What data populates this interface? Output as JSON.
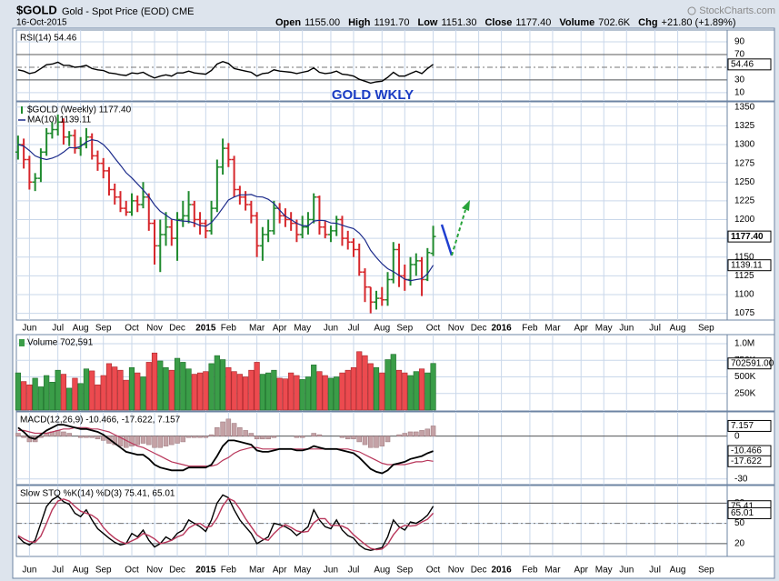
{
  "header": {
    "symbol": "$GOLD",
    "name": "Gold - Spot Price (EOD) CME",
    "date": "16-Oct-2015",
    "quote": [
      [
        "Open",
        "1155.00"
      ],
      [
        "High",
        "1191.70"
      ],
      [
        "Low",
        "1151.30"
      ],
      [
        "Close",
        "1177.40"
      ],
      [
        "Volume",
        "702.6K"
      ],
      [
        "Chg",
        "+21.80 (+1.89%)"
      ]
    ],
    "watermark": "StockCharts.com"
  },
  "x_axis": {
    "xlim": [
      -0.3,
      124.7
    ],
    "xticks": [
      {
        "value": 2,
        "label": "Jun"
      },
      {
        "value": 7,
        "label": "Jul"
      },
      {
        "value": 11,
        "label": "Aug"
      },
      {
        "value": 15,
        "label": "Sep"
      },
      {
        "value": 20,
        "label": "Oct"
      },
      {
        "value": 24,
        "label": "Nov"
      },
      {
        "value": 28,
        "label": "Dec"
      },
      {
        "value": 33,
        "label": "2015"
      },
      {
        "value": 37,
        "label": "Feb"
      },
      {
        "value": 42,
        "label": "Mar"
      },
      {
        "value": 46,
        "label": "Apr"
      },
      {
        "value": 50,
        "label": "May"
      },
      {
        "value": 55,
        "label": "Jun"
      },
      {
        "value": 59,
        "label": "Jul"
      },
      {
        "value": 64,
        "label": "Aug"
      },
      {
        "value": 68,
        "label": "Sep"
      },
      {
        "value": 73,
        "label": "Oct"
      },
      {
        "value": 77,
        "label": "Nov"
      },
      {
        "value": 81,
        "label": "Dec"
      },
      {
        "value": 85,
        "label": "2016"
      },
      {
        "value": 90,
        "label": "Feb"
      },
      {
        "value": 94,
        "label": "Mar"
      },
      {
        "value": 99,
        "label": "Apr"
      },
      {
        "value": 103,
        "label": "May"
      },
      {
        "value": 107,
        "label": "Jun"
      },
      {
        "value": 112,
        "label": "Jul"
      },
      {
        "value": 116,
        "label": "Aug"
      },
      {
        "value": 121,
        "label": "Sep"
      }
    ]
  },
  "chart_data": [
    {
      "type": "line",
      "legend": "RSI(14) 54.46",
      "ylim": [
        -3,
        108.6
      ],
      "yticks": [
        10,
        30,
        70,
        90
      ],
      "ref_lines": [
        30,
        70
      ],
      "dash_lines": [
        50
      ],
      "grid": true,
      "series": [
        {
          "name": "RSI(14)",
          "color": "#000000",
          "value_label": "54.46",
          "values": [
            46,
            44,
            40,
            42,
            48,
            54,
            55,
            58,
            53,
            53,
            50,
            51,
            53,
            48,
            46,
            45,
            41,
            40,
            38,
            37,
            41,
            40,
            42,
            37,
            33,
            36,
            38,
            36,
            41,
            41,
            44,
            41,
            40,
            39,
            45,
            55,
            59,
            56,
            48,
            46,
            44,
            42,
            36,
            40,
            41,
            46,
            44,
            43,
            42,
            40,
            42,
            44,
            49,
            42,
            40,
            41,
            44,
            39,
            38,
            36,
            31,
            28,
            25,
            27,
            28,
            34,
            42,
            36,
            36,
            40,
            44,
            40,
            48,
            54.46
          ]
        }
      ]
    },
    {
      "type": "ohlc",
      "title": "GOLD WKLY",
      "legend": "$GOLD (Weekly) 1177.40",
      "close_label": "1177.40",
      "up_color": "#1f8a2e",
      "down_color": "#d6262b",
      "ylim": [
        1066,
        1357
      ],
      "yticks": [
        1075,
        1100,
        1125,
        1150,
        1175,
        1200,
        1225,
        1250,
        1275,
        1300,
        1325,
        1350
      ],
      "grid": true,
      "open": [
        1290,
        1300,
        1280,
        1250,
        1255,
        1290,
        1315,
        1320,
        1330,
        1310,
        1312,
        1295,
        1300,
        1310,
        1285,
        1275,
        1265,
        1240,
        1230,
        1215,
        1210,
        1225,
        1220,
        1230,
        1195,
        1165,
        1180,
        1190,
        1175,
        1200,
        1205,
        1220,
        1200,
        1195,
        1185,
        1215,
        1270,
        1295,
        1280,
        1240,
        1230,
        1220,
        1205,
        1165,
        1180,
        1185,
        1215,
        1205,
        1200,
        1195,
        1180,
        1190,
        1200,
        1230,
        1190,
        1180,
        1185,
        1200,
        1175,
        1170,
        1160,
        1130,
        1110,
        1090,
        1095,
        1093,
        1120,
        1160,
        1125,
        1120,
        1140,
        1145,
        1120,
        1155
      ],
      "high": [
        1312,
        1308,
        1285,
        1262,
        1295,
        1322,
        1330,
        1340,
        1335,
        1318,
        1320,
        1310,
        1322,
        1315,
        1292,
        1282,
        1270,
        1248,
        1238,
        1225,
        1235,
        1232,
        1250,
        1235,
        1200,
        1200,
        1210,
        1200,
        1210,
        1225,
        1238,
        1225,
        1210,
        1200,
        1225,
        1280,
        1308,
        1302,
        1285,
        1245,
        1238,
        1225,
        1210,
        1190,
        1200,
        1225,
        1222,
        1215,
        1210,
        1200,
        1205,
        1210,
        1235,
        1232,
        1198,
        1192,
        1205,
        1205,
        1185,
        1175,
        1168,
        1135,
        1110,
        1105,
        1110,
        1130,
        1170,
        1168,
        1140,
        1150,
        1155,
        1150,
        1162,
        1191.7
      ],
      "low": [
        1280,
        1268,
        1240,
        1238,
        1250,
        1285,
        1308,
        1312,
        1300,
        1298,
        1288,
        1285,
        1295,
        1280,
        1265,
        1255,
        1232,
        1220,
        1210,
        1205,
        1205,
        1210,
        1215,
        1185,
        1140,
        1130,
        1165,
        1165,
        1145,
        1190,
        1195,
        1190,
        1180,
        1175,
        1180,
        1210,
        1260,
        1270,
        1230,
        1220,
        1212,
        1195,
        1150,
        1145,
        1170,
        1180,
        1195,
        1190,
        1185,
        1170,
        1175,
        1180,
        1195,
        1180,
        1175,
        1170,
        1178,
        1165,
        1160,
        1150,
        1125,
        1090,
        1075,
        1080,
        1085,
        1085,
        1115,
        1110,
        1105,
        1112,
        1125,
        1098,
        1118,
        1151.3
      ],
      "close": [
        1300,
        1280,
        1250,
        1255,
        1290,
        1315,
        1320,
        1330,
        1310,
        1312,
        1295,
        1300,
        1310,
        1285,
        1275,
        1265,
        1240,
        1230,
        1215,
        1210,
        1225,
        1220,
        1230,
        1195,
        1165,
        1180,
        1190,
        1175,
        1200,
        1205,
        1220,
        1200,
        1195,
        1185,
        1215,
        1270,
        1295,
        1280,
        1240,
        1230,
        1220,
        1205,
        1165,
        1180,
        1185,
        1215,
        1205,
        1200,
        1195,
        1180,
        1190,
        1200,
        1230,
        1190,
        1180,
        1185,
        1200,
        1175,
        1170,
        1160,
        1130,
        1110,
        1090,
        1095,
        1093,
        1120,
        1160,
        1125,
        1120,
        1140,
        1145,
        1120,
        1156,
        1177.4
      ],
      "ma": {
        "name": "MA(10)",
        "legend": "MA(10) 1139.11",
        "color": "#1b2a8a",
        "value_label": "1139.11",
        "values": [
          1300,
          1298,
          1292,
          1285,
          1282,
          1280,
          1282,
          1285,
          1290,
          1296,
          1295.5,
          1297.5,
          1303.5,
          1306.5,
          1305,
          1300,
          1292,
          1282,
          1272.5,
          1262.5,
          1255.5,
          1247.5,
          1239.5,
          1230.5,
          1219.5,
          1211,
          1206,
          1200.5,
          1199,
          1198,
          1197.5,
          1195.5,
          1192,
          1191,
          1196,
          1205,
          1215.5,
          1226,
          1230,
          1233,
          1233,
          1233.5,
          1230.5,
          1230,
          1227,
          1221.5,
          1212.5,
          1204.5,
          1200,
          1195,
          1192,
          1191.5,
          1198,
          1199,
          1198.5,
          1195.5,
          1195,
          1192.5,
          1190,
          1188,
          1182,
          1173,
          1159,
          1149.5,
          1141,
          1134.5,
          1130.5,
          1125.5,
          1120.5,
          1118.5,
          1120,
          1121,
          1127.6,
          1139.11
        ]
      }
    },
    {
      "type": "bar",
      "legend": "Volume 702,591",
      "value_label": "702591.00",
      "up_color": "#3a9d48",
      "down_color": "#ec4a4f",
      "ylim": [
        -14000,
        1137000
      ],
      "yticks": [
        {
          "value": 250000,
          "label": "250K"
        },
        {
          "value": 500000,
          "label": "500K"
        },
        {
          "value": 750000,
          "label": "750K"
        },
        {
          "value": 1000000,
          "label": "1.0M"
        }
      ],
      "grid": true,
      "values": [
        560000,
        430000,
        380000,
        480000,
        350000,
        520000,
        420000,
        600000,
        540000,
        330000,
        480000,
        400000,
        620000,
        590000,
        380000,
        520000,
        700000,
        650000,
        600000,
        450000,
        640000,
        560000,
        500000,
        720000,
        860000,
        740000,
        640000,
        600000,
        780000,
        720000,
        620000,
        540000,
        560000,
        580000,
        700000,
        820000,
        760000,
        640000,
        580000,
        540000,
        500000,
        600000,
        720000,
        540000,
        560000,
        600000,
        480000,
        470000,
        560000,
        520000,
        460000,
        500000,
        680000,
        580000,
        520000,
        480000,
        500000,
        560000,
        600000,
        640000,
        880000,
        820000,
        700000,
        640000,
        560000,
        760000,
        840000,
        600000,
        560000,
        520000,
        580000,
        620000,
        560000,
        702591
      ]
    },
    {
      "type": "macd",
      "legend": "MACD(12,26,9) -10.466, -17.622, 7.157",
      "ylim": [
        -34,
        17
      ],
      "yticks": [
        -30,
        0
      ],
      "ref_lines": [
        0
      ],
      "grid": true,
      "series": [
        {
          "name": "MACD",
          "color": "#000000",
          "value_label": "-10.466",
          "values": [
            6,
            3,
            -1,
            -2,
            1,
            4,
            6,
            8,
            8,
            7,
            6,
            5,
            5,
            4,
            3,
            1,
            -2,
            -5,
            -8,
            -11,
            -12,
            -13,
            -13,
            -16,
            -20,
            -22,
            -23,
            -24,
            -24,
            -24,
            -22,
            -22,
            -22,
            -22,
            -20,
            -14,
            -7,
            -3,
            -3,
            -4,
            -5,
            -6,
            -10,
            -11,
            -11,
            -10,
            -9,
            -9,
            -9,
            -10,
            -10,
            -9,
            -7,
            -8,
            -9,
            -9,
            -9,
            -10,
            -11,
            -12,
            -15,
            -19,
            -23,
            -25,
            -26,
            -24,
            -20,
            -19,
            -18,
            -16,
            -15,
            -14,
            -12,
            -10.466
          ]
        },
        {
          "name": "Signal",
          "color": "#b8365a",
          "value_label": "-17.622",
          "values": [
            4,
            4,
            3,
            2,
            2,
            2,
            3,
            4,
            5,
            5,
            6,
            6,
            6,
            5,
            5,
            4,
            3,
            1,
            -1,
            -3,
            -5,
            -7,
            -8,
            -10,
            -12,
            -14,
            -16,
            -18,
            -19,
            -20,
            -21,
            -21,
            -21,
            -21,
            -21,
            -20,
            -17,
            -15,
            -12,
            -10,
            -9,
            -8,
            -8,
            -9,
            -9,
            -9,
            -9,
            -9,
            -9,
            -9,
            -9,
            -9,
            -9,
            -9,
            -9,
            -9,
            -9,
            -9,
            -9,
            -10,
            -11,
            -13,
            -15,
            -17,
            -19,
            -20,
            -20,
            -20,
            -20,
            -19,
            -18,
            -18,
            -17,
            -17.622
          ]
        },
        {
          "name": "Histogram",
          "color": "#c4a2a6",
          "value_label": "7.157",
          "values": [
            2,
            -1,
            -4,
            -4,
            -1,
            2,
            3,
            4,
            3,
            2,
            0,
            -1,
            -1,
            -1,
            -2,
            -3,
            -5,
            -6,
            -7,
            -8,
            -7,
            -6,
            -5,
            -6,
            -8,
            -8,
            -7,
            -6,
            -5,
            -4,
            -1,
            -1,
            -1,
            -1,
            1,
            6,
            10,
            12,
            9,
            6,
            4,
            2,
            -2,
            -2,
            -2,
            -1,
            0,
            0,
            0,
            -1,
            -1,
            0,
            2,
            1,
            0,
            0,
            0,
            -1,
            -2,
            -2,
            -4,
            -6,
            -8,
            -8,
            -7,
            -4,
            0,
            1,
            2,
            3,
            3,
            4,
            5,
            7.157
          ]
        }
      ]
    },
    {
      "type": "line",
      "legend": "Slow STO %K(14) %D(3) 75.41, 65.01",
      "ylim": [
        1,
        106
      ],
      "yticks": [
        20,
        50,
        80
      ],
      "ref_lines": [
        20,
        80
      ],
      "dash_lines": [
        50
      ],
      "grid": true,
      "series": [
        {
          "name": "%K(14)",
          "color": "#000000",
          "value_label": "75.41",
          "values": [
            30,
            22,
            18,
            25,
            50,
            75,
            85,
            90,
            82,
            78,
            65,
            60,
            70,
            55,
            42,
            35,
            28,
            22,
            18,
            20,
            35,
            30,
            40,
            25,
            15,
            20,
            30,
            25,
            35,
            40,
            55,
            50,
            45,
            38,
            55,
            80,
            92,
            88,
            70,
            55,
            45,
            35,
            20,
            25,
            30,
            50,
            48,
            45,
            40,
            32,
            38,
            45,
            70,
            55,
            45,
            42,
            55,
            40,
            32,
            28,
            18,
            12,
            10,
            12,
            14,
            30,
            55,
            45,
            40,
            52,
            50,
            55,
            62,
            75.41
          ]
        },
        {
          "name": "%D(3)",
          "color": "#b8365a",
          "value_label": "65.01",
          "values": [
            32,
            27,
            23,
            22,
            31,
            50,
            70,
            83,
            86,
            83,
            75,
            68,
            65,
            62,
            56,
            44,
            35,
            28,
            23,
            20,
            24,
            28,
            35,
            32,
            27,
            20,
            22,
            25,
            30,
            33,
            43,
            48,
            50,
            44,
            46,
            58,
            76,
            87,
            83,
            71,
            57,
            45,
            33,
            27,
            25,
            35,
            43,
            48,
            44,
            39,
            37,
            38,
            51,
            57,
            57,
            47,
            47,
            46,
            42,
            33,
            26,
            19,
            13,
            11,
            12,
            19,
            33,
            43,
            47,
            46,
            47,
            52,
            56,
            65.01
          ]
        }
      ]
    }
  ]
}
